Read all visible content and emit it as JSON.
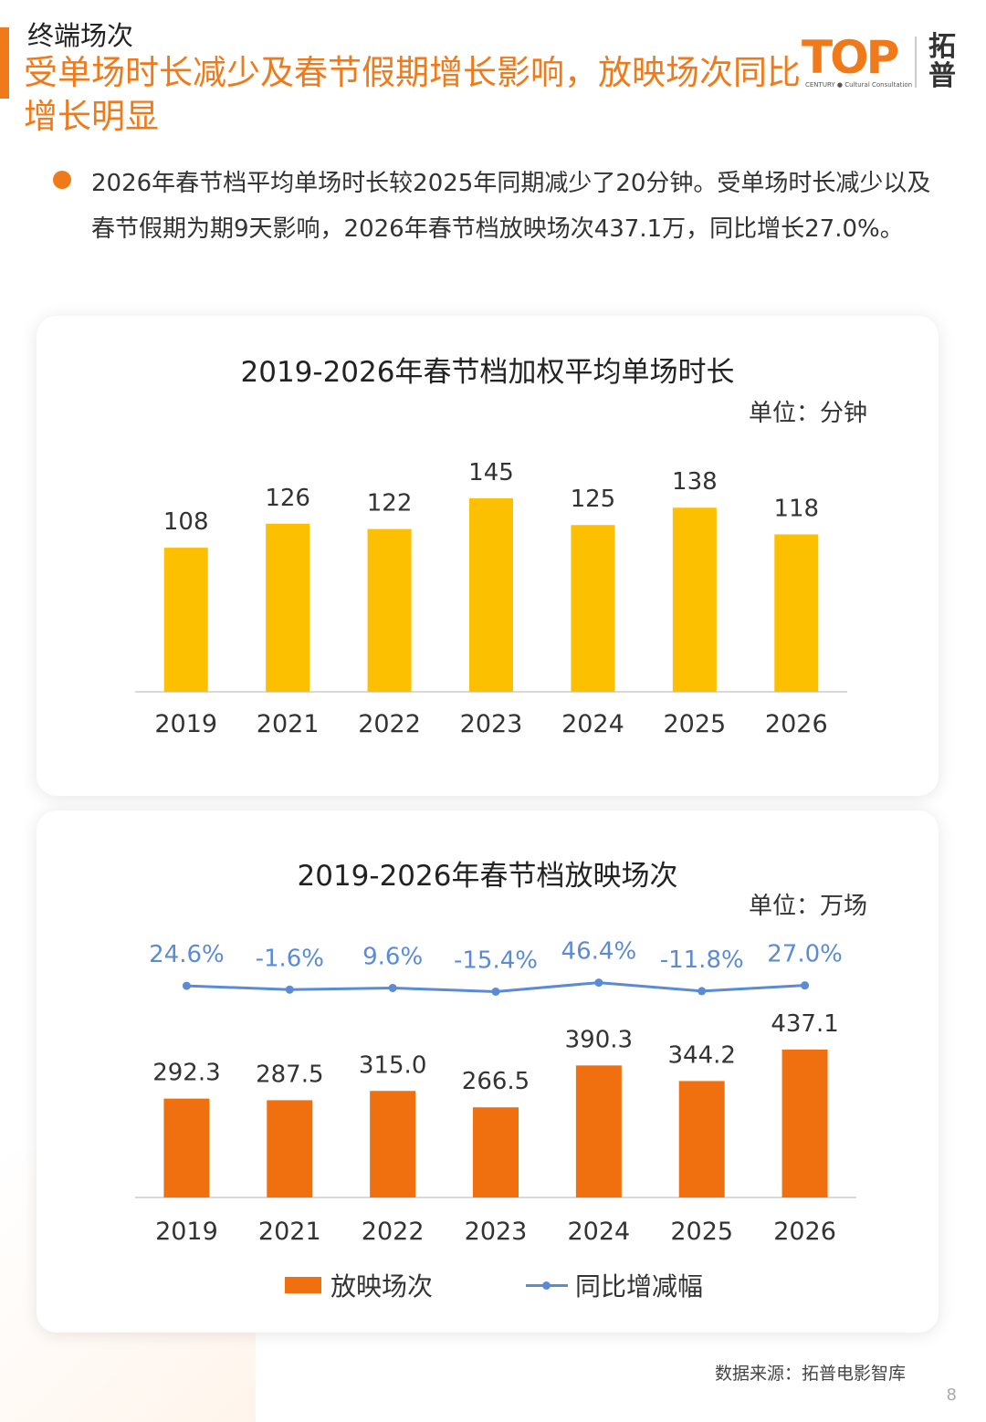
{
  "header": {
    "section_label": "终端场次",
    "headline": "受单场时长减少及春节假期增长影响，放映场次同比增长明显",
    "logo_text": "TOP",
    "logo_sub": "CENTURY ● Cultural Consultation",
    "logo_cn": "拓普"
  },
  "colors": {
    "accent": "#f07a1a",
    "bar_duration": "#fdc000",
    "bar_screenings": "#f07010",
    "line_yoy": "#5b8bd4"
  },
  "summary": "2026年春节档平均单场时长较2025年同期减少了20分钟。受单场时长减少以及春节假期为期9天影响，2026年春节档放映场次437.1万，同比增长27.0%。",
  "chart_data": [
    {
      "type": "bar",
      "title": "2019-2026年春节档加权平均单场时长",
      "unit": "单位：分钟",
      "categories": [
        "2019",
        "2021",
        "2022",
        "2023",
        "2024",
        "2025",
        "2026"
      ],
      "values": [
        108,
        126,
        122,
        145,
        125,
        138,
        118
      ],
      "ylim": [
        0,
        145
      ],
      "data_labels": true,
      "grid": false
    },
    {
      "type": "bar",
      "title": "2019-2026年春节档放映场次",
      "unit": "单位：万场",
      "categories": [
        "2019",
        "2021",
        "2022",
        "2023",
        "2024",
        "2025",
        "2026"
      ],
      "series": [
        {
          "name": "放映场次",
          "type": "bar",
          "values": [
            292.3,
            287.5,
            315.0,
            266.5,
            390.3,
            344.2,
            437.1
          ],
          "labels": [
            "292.3",
            "287.5",
            "315.0",
            "266.5",
            "390.3",
            "344.2",
            "437.1"
          ]
        },
        {
          "name": "同比增减幅",
          "type": "line",
          "values": [
            24.6,
            -1.6,
            9.6,
            -15.4,
            46.4,
            -11.8,
            27.0
          ],
          "labels": [
            "24.6%",
            "-1.6%",
            "9.6%",
            "-15.4%",
            "46.4%",
            "-11.8%",
            "27.0%"
          ]
        }
      ],
      "legend_position": "bottom",
      "grid": false
    }
  ],
  "footer": {
    "source": "数据来源：拓普电影智库",
    "page": "8"
  }
}
